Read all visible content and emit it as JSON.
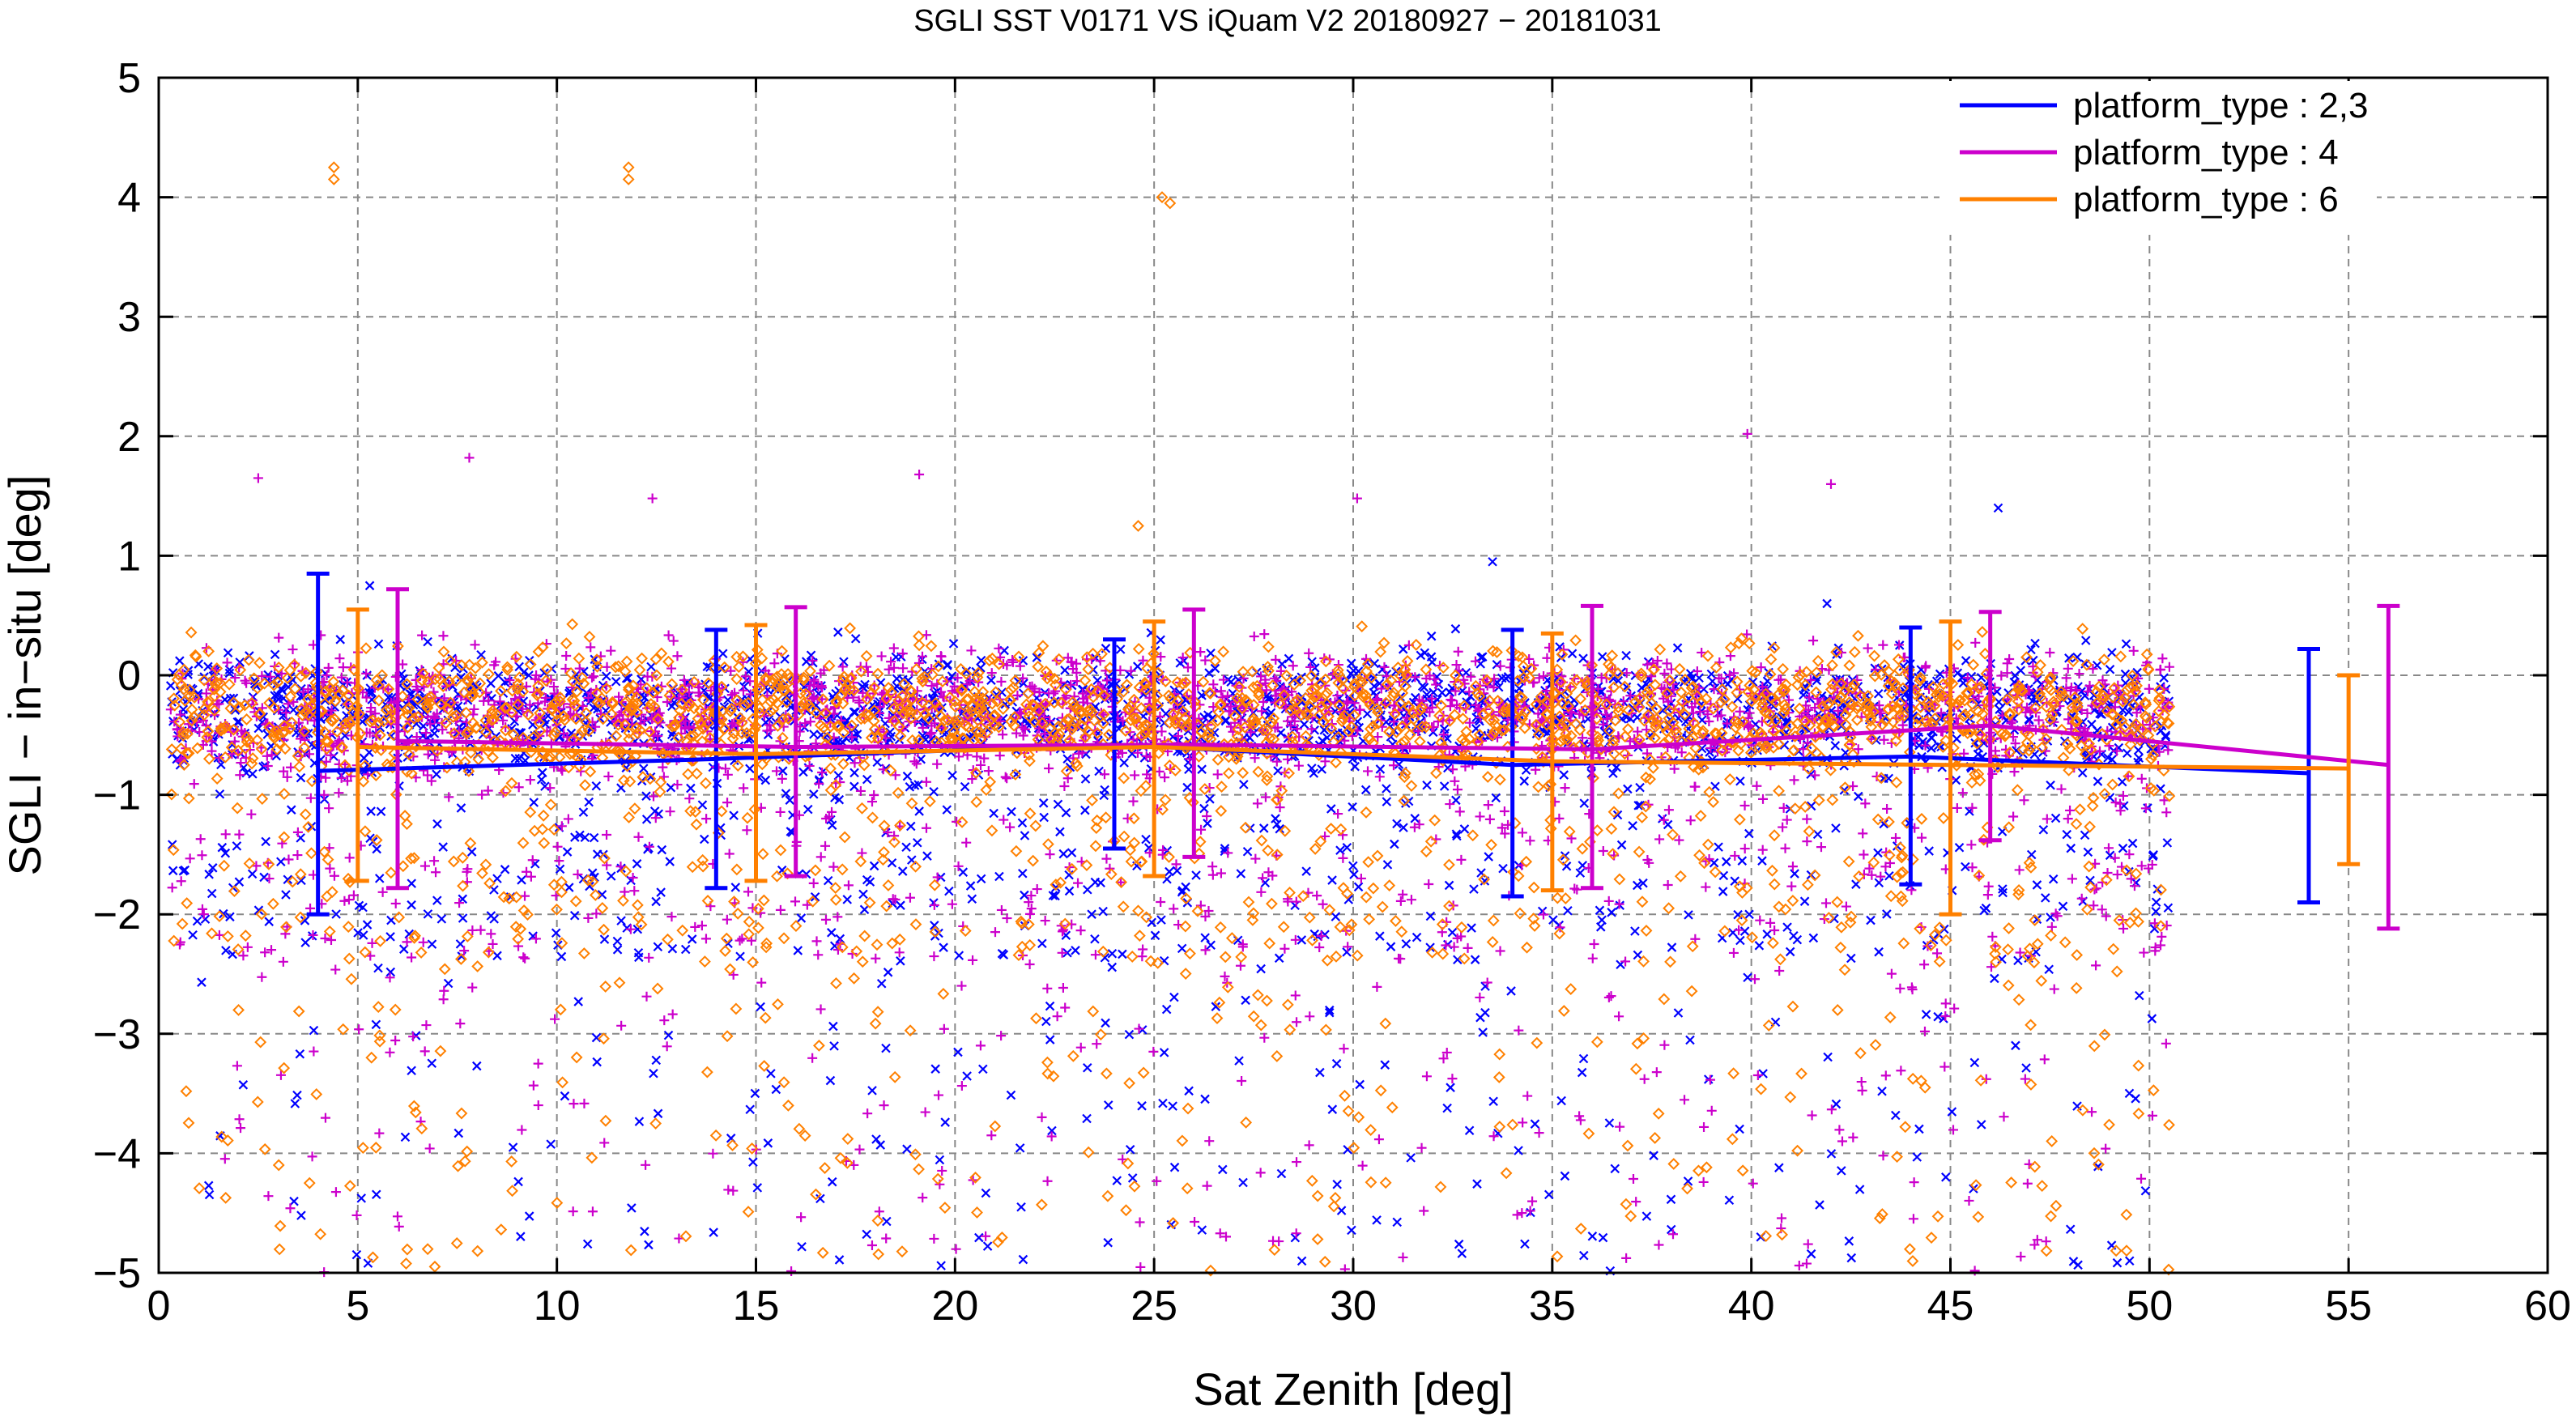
{
  "chart_data": {
    "type": "scatter",
    "title": "SGLI SST V0171 VS iQuam V2 20180927 − 20181031",
    "xlabel": "Sat Zenith [deg]",
    "ylabel": "SGLI − in−situ [deg]",
    "xlim": [
      0,
      60
    ],
    "ylim": [
      -5,
      5
    ],
    "xticks": [
      0,
      5,
      10,
      15,
      20,
      25,
      30,
      35,
      40,
      45,
      50,
      55,
      60
    ],
    "yticks": [
      -5,
      -4,
      -3,
      -2,
      -1,
      0,
      1,
      2,
      3,
      4,
      5
    ],
    "xtick_labels": [
      "0",
      "5",
      "10",
      "15",
      "20",
      "25",
      "30",
      "35",
      "40",
      "45",
      "50",
      "55",
      "60"
    ],
    "ytick_labels": [
      "−5",
      "−4",
      "−3",
      "−2",
      "−1",
      "0",
      "1",
      "2",
      "3",
      "4",
      "5"
    ],
    "grid": true,
    "legend_position": "top-right",
    "series": [
      {
        "name": "platform_type : 2,3",
        "color": "#0000ff",
        "marker": "x",
        "mean_x": [
          4,
          14,
          24,
          34,
          44,
          54
        ],
        "mean_y": [
          -0.8,
          -0.7,
          -0.58,
          -0.75,
          -0.68,
          -0.82
        ],
        "error_low": [
          -2.0,
          -1.78,
          -1.45,
          -1.85,
          -1.75,
          -1.9
        ],
        "error_high": [
          0.85,
          0.38,
          0.3,
          0.38,
          0.4,
          0.22
        ],
        "outliers": [
          [
            33.5,
            0.95
          ],
          [
            46.2,
            1.4
          ],
          [
            41.9,
            0.6
          ],
          [
            49.5,
            -4.9
          ],
          [
            5.3,
            0.75
          ]
        ]
      },
      {
        "name": "platform_type : 4",
        "color": "#cc00cc",
        "marker": "+",
        "mean_x": [
          6,
          16,
          26,
          36,
          46,
          56
        ],
        "mean_y": [
          -0.55,
          -0.6,
          -0.58,
          -0.62,
          -0.42,
          -0.75
        ],
        "error_low": [
          -1.78,
          -1.68,
          -1.52,
          -1.78,
          -1.38,
          -2.12
        ],
        "error_high": [
          0.72,
          0.57,
          0.55,
          0.58,
          0.53,
          0.58
        ],
        "outliers": [
          [
            7.8,
            1.82
          ],
          [
            39.9,
            2.02
          ],
          [
            2.5,
            1.65
          ],
          [
            42.0,
            1.6
          ],
          [
            12.4,
            1.48
          ],
          [
            30.1,
            1.48
          ],
          [
            19.1,
            1.68
          ]
        ]
      },
      {
        "name": "platform_type : 6",
        "color": "#ff8000",
        "marker": "diamond",
        "mean_x": [
          5,
          15,
          25,
          35,
          45,
          55
        ],
        "mean_y": [
          -0.6,
          -0.66,
          -0.6,
          -0.72,
          -0.75,
          -0.78
        ],
        "error_low": [
          -1.72,
          -1.72,
          -1.68,
          -1.8,
          -2.0,
          -1.58
        ],
        "error_high": [
          0.55,
          0.42,
          0.45,
          0.35,
          0.45,
          0.0
        ],
        "outliers": [
          [
            4.4,
            4.25
          ],
          [
            4.4,
            4.15
          ],
          [
            11.8,
            4.25
          ],
          [
            11.8,
            4.15
          ],
          [
            25.2,
            4.0
          ],
          [
            25.4,
            3.95
          ],
          [
            24.6,
            1.25
          ]
        ]
      }
    ]
  }
}
